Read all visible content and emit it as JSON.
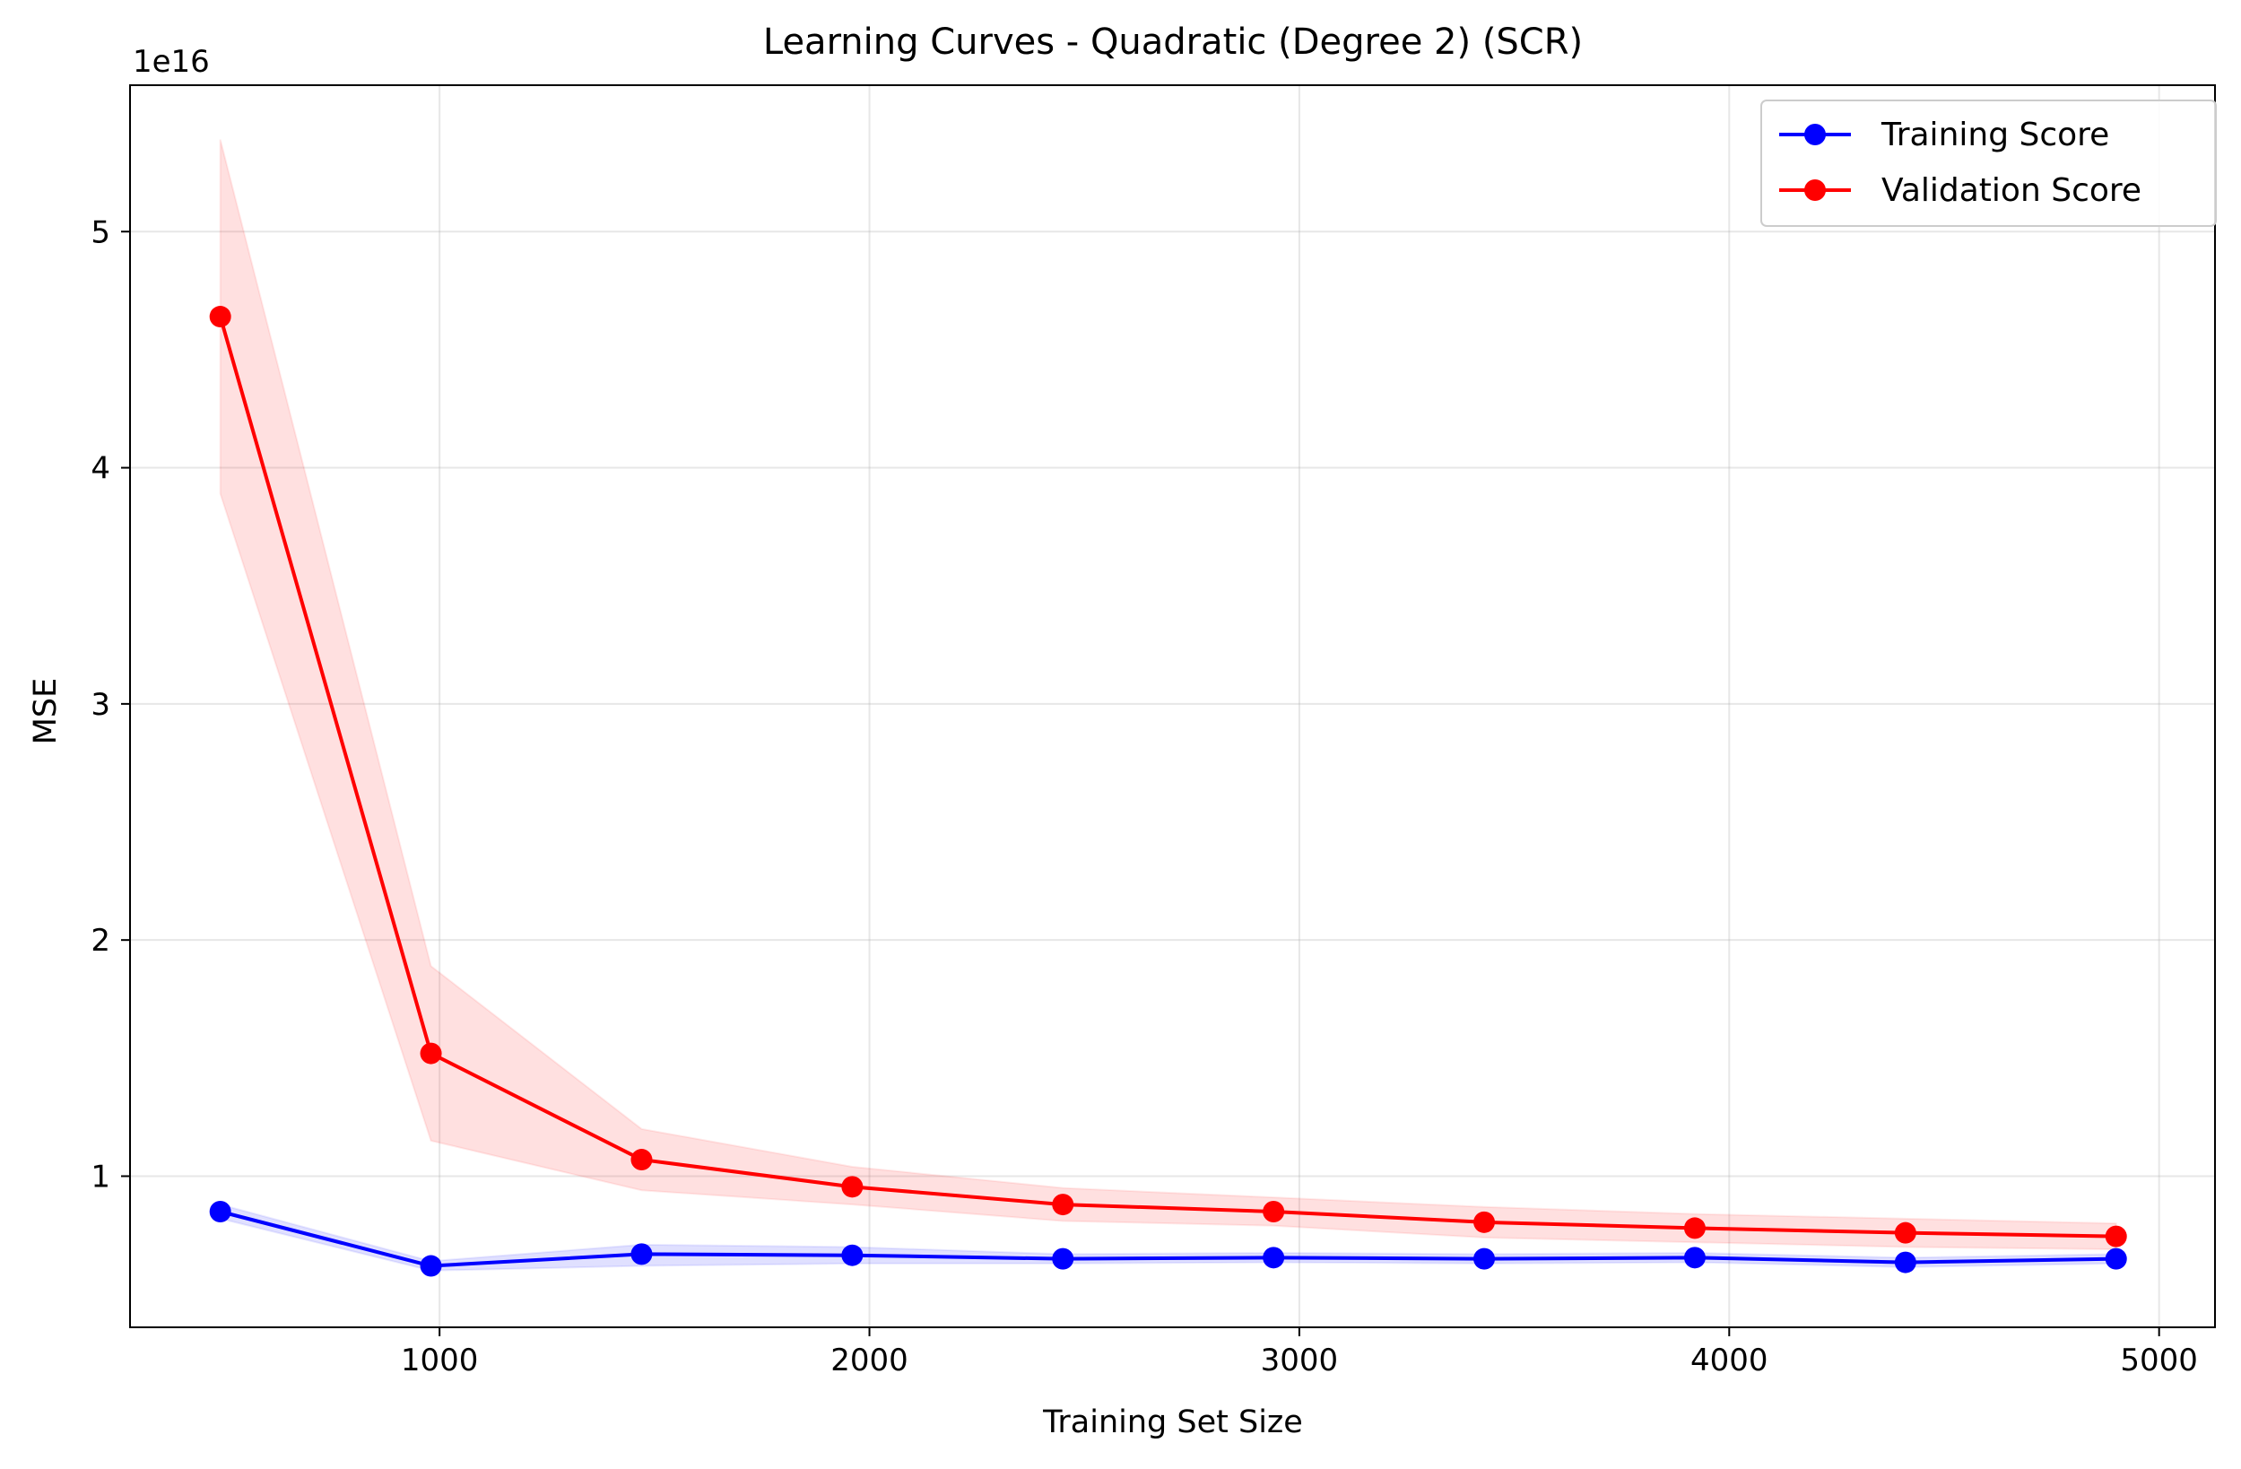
{
  "chart_data": {
    "type": "line",
    "title": "Learning Curves - Quadratic (Degree 2) (SCR)",
    "xlabel": "Training Set Size",
    "ylabel": "MSE",
    "y_offset_label": "1e16",
    "xlim": [
      280,
      5130
    ],
    "ylim": [
      0.36,
      5.62
    ],
    "x_ticks": [
      1000,
      2000,
      3000,
      4000,
      5000
    ],
    "x_tick_labels": [
      "1000",
      "2000",
      "3000",
      "4000",
      "5000"
    ],
    "y_ticks": [
      1,
      2,
      3,
      4,
      5
    ],
    "y_tick_labels": [
      "1",
      "2",
      "3",
      "4",
      "5"
    ],
    "grid": true,
    "legend_position": "top-right",
    "x": [
      490,
      980,
      1470,
      1960,
      2450,
      2940,
      3430,
      3920,
      4410,
      4900
    ],
    "series": [
      {
        "name": "Training Score",
        "color": "#0000ff",
        "band_color": "#0000ff",
        "values": [
          0.85,
          0.62,
          0.67,
          0.665,
          0.65,
          0.655,
          0.65,
          0.655,
          0.635,
          0.65
        ],
        "lower": [
          0.82,
          0.6,
          0.62,
          0.63,
          0.63,
          0.635,
          0.63,
          0.635,
          0.615,
          0.63
        ],
        "upper": [
          0.88,
          0.64,
          0.71,
          0.7,
          0.67,
          0.675,
          0.67,
          0.675,
          0.655,
          0.67
        ]
      },
      {
        "name": "Validation Score",
        "color": "#ff0000",
        "band_color": "#ff0000",
        "values": [
          4.64,
          1.52,
          1.07,
          0.955,
          0.88,
          0.85,
          0.805,
          0.78,
          0.76,
          0.745
        ],
        "lower": [
          3.89,
          1.15,
          0.94,
          0.88,
          0.81,
          0.79,
          0.74,
          0.72,
          0.7,
          0.69
        ],
        "upper": [
          5.39,
          1.89,
          1.2,
          1.04,
          0.95,
          0.91,
          0.87,
          0.84,
          0.82,
          0.8
        ]
      }
    ]
  }
}
